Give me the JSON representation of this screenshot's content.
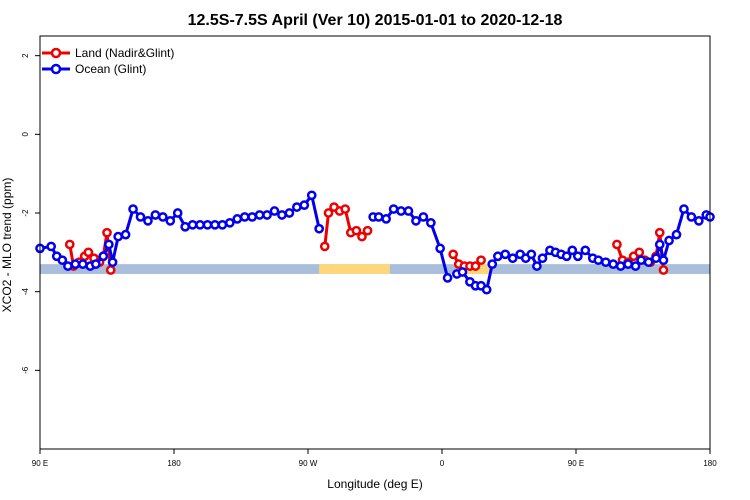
{
  "chart_data": {
    "type": "line",
    "title": "12.5S-7.5S April (Ver 10)   2015-01-01 to 2020-12-18",
    "xlabel": "Longitude (deg E)",
    "ylabel": "XCO2 - MLO trend (ppm)",
    "xlim": [
      90,
      450
    ],
    "ylim": [
      -8,
      2.5
    ],
    "x_ticks": [
      {
        "value": 90,
        "label": "90 E"
      },
      {
        "value": 162,
        "label": "180"
      },
      {
        "value": 234,
        "label": "90 W"
      },
      {
        "value": 306,
        "label": "0"
      },
      {
        "value": 378,
        "label": "90 E"
      },
      {
        "value": 450,
        "label": "180"
      }
    ],
    "y_ticks": [
      {
        "value": 2,
        "label": "2"
      },
      {
        "value": 0,
        "label": "0"
      },
      {
        "value": -2,
        "label": "-2"
      },
      {
        "value": -4,
        "label": "-4"
      },
      {
        "value": -6,
        "label": "-6"
      }
    ],
    "legend_position": "top-left",
    "band": {
      "y_range": [
        -3.55,
        -3.3
      ],
      "color": "#a8bedb",
      "highlight_color": "#ffd77a",
      "highlight_x": [
        [
          240,
          246.5
        ],
        [
          246.5,
          273.5
        ],
        [
          273.5,
          278
        ],
        [
          317,
          320
        ],
        [
          320,
          330
        ],
        [
          330,
          333
        ]
      ]
    },
    "series": [
      {
        "name": "Land (Nadir&Glint)",
        "color": "#ee0000",
        "segments": [
          [
            [
              106,
              -2.8
            ],
            [
              108,
              -3.35
            ],
            [
              111,
              -3.25
            ],
            [
              114,
              -3.1
            ],
            [
              116,
              -3.0
            ],
            [
              119,
              -3.15
            ],
            [
              122,
              -3.25
            ],
            [
              124,
              -3.1
            ],
            [
              126,
              -2.5
            ],
            [
              128,
              -3.45
            ]
          ],
          [
            [
              243,
              -2.85
            ],
            [
              245,
              -2.0
            ],
            [
              248,
              -1.85
            ],
            [
              251,
              -1.95
            ],
            [
              254,
              -1.9
            ],
            [
              257,
              -2.5
            ],
            [
              260,
              -2.45
            ],
            [
              263,
              -2.6
            ],
            [
              266,
              -2.45
            ]
          ],
          [
            [
              312,
              -3.05
            ],
            [
              315,
              -3.3
            ],
            [
              318,
              -3.35
            ],
            [
              321,
              -3.35
            ],
            [
              324,
              -3.35
            ],
            [
              327,
              -3.2
            ]
          ],
          [
            [
              400,
              -2.8
            ],
            [
              403,
              -3.2
            ],
            [
              406,
              -3.25
            ],
            [
              409,
              -3.1
            ],
            [
              412,
              -3.0
            ],
            [
              415,
              -3.2
            ],
            [
              418,
              -3.25
            ],
            [
              421,
              -3.1
            ],
            [
              423,
              -2.5
            ],
            [
              425,
              -3.45
            ]
          ]
        ]
      },
      {
        "name": "Ocean (Glint)",
        "color": "#0000ee",
        "segments": [
          [
            [
              90,
              -2.9
            ],
            [
              96,
              -2.85
            ],
            [
              99,
              -3.1
            ],
            [
              102,
              -3.2
            ],
            [
              105,
              -3.35
            ],
            [
              109,
              -3.3
            ],
            [
              113,
              -3.3
            ],
            [
              117,
              -3.35
            ],
            [
              120,
              -3.3
            ],
            [
              124,
              -3.1
            ],
            [
              127,
              -2.8
            ],
            [
              129,
              -3.25
            ],
            [
              132,
              -2.6
            ],
            [
              136,
              -2.55
            ],
            [
              140,
              -1.9
            ],
            [
              144,
              -2.1
            ],
            [
              148,
              -2.2
            ],
            [
              152,
              -2.05
            ],
            [
              156,
              -2.1
            ],
            [
              160,
              -2.2
            ],
            [
              164,
              -2.0
            ],
            [
              168,
              -2.35
            ],
            [
              172,
              -2.3
            ],
            [
              176,
              -2.3
            ],
            [
              180,
              -2.3
            ],
            [
              184,
              -2.3
            ],
            [
              188,
              -2.3
            ],
            [
              192,
              -2.25
            ],
            [
              196,
              -2.15
            ],
            [
              200,
              -2.1
            ],
            [
              204,
              -2.1
            ],
            [
              208,
              -2.05
            ],
            [
              212,
              -2.05
            ],
            [
              216,
              -1.95
            ],
            [
              220,
              -2.05
            ],
            [
              224,
              -2.0
            ],
            [
              228,
              -1.85
            ],
            [
              232,
              -1.8
            ],
            [
              236,
              -1.55
            ],
            [
              240,
              -2.4
            ]
          ],
          [
            [
              269,
              -2.1
            ],
            [
              272,
              -2.1
            ],
            [
              276,
              -2.15
            ],
            [
              280,
              -1.9
            ],
            [
              284,
              -1.95
            ],
            [
              288,
              -1.95
            ],
            [
              292,
              -2.2
            ],
            [
              296,
              -2.1
            ],
            [
              300,
              -2.25
            ],
            [
              305,
              -2.9
            ],
            [
              309,
              -3.65
            ]
          ],
          [
            [
              314,
              -3.55
            ],
            [
              317,
              -3.5
            ],
            [
              321,
              -3.75
            ],
            [
              324,
              -3.85
            ],
            [
              327,
              -3.85
            ],
            [
              330,
              -3.95
            ],
            [
              333,
              -3.3
            ],
            [
              336,
              -3.1
            ],
            [
              340,
              -3.05
            ],
            [
              344,
              -3.15
            ],
            [
              348,
              -3.05
            ],
            [
              351,
              -3.15
            ],
            [
              354,
              -3.05
            ],
            [
              357,
              -3.35
            ],
            [
              360,
              -3.15
            ],
            [
              364,
              -2.95
            ],
            [
              367,
              -3.0
            ],
            [
              370,
              -3.05
            ],
            [
              373,
              -3.1
            ],
            [
              376,
              -2.95
            ],
            [
              379,
              -3.1
            ],
            [
              383,
              -2.95
            ],
            [
              387,
              -3.15
            ],
            [
              390,
              -3.2
            ],
            [
              394,
              -3.25
            ],
            [
              398,
              -3.3
            ],
            [
              402,
              -3.35
            ],
            [
              406,
              -3.3
            ],
            [
              410,
              -3.35
            ],
            [
              413,
              -3.2
            ],
            [
              417,
              -3.25
            ],
            [
              421,
              -3.15
            ],
            [
              423,
              -2.8
            ],
            [
              425,
              -3.2
            ],
            [
              428,
              -2.7
            ],
            [
              432,
              -2.55
            ],
            [
              436,
              -1.9
            ],
            [
              440,
              -2.1
            ],
            [
              444,
              -2.2
            ],
            [
              448,
              -2.05
            ],
            [
              450,
              -2.1
            ]
          ]
        ]
      }
    ]
  }
}
